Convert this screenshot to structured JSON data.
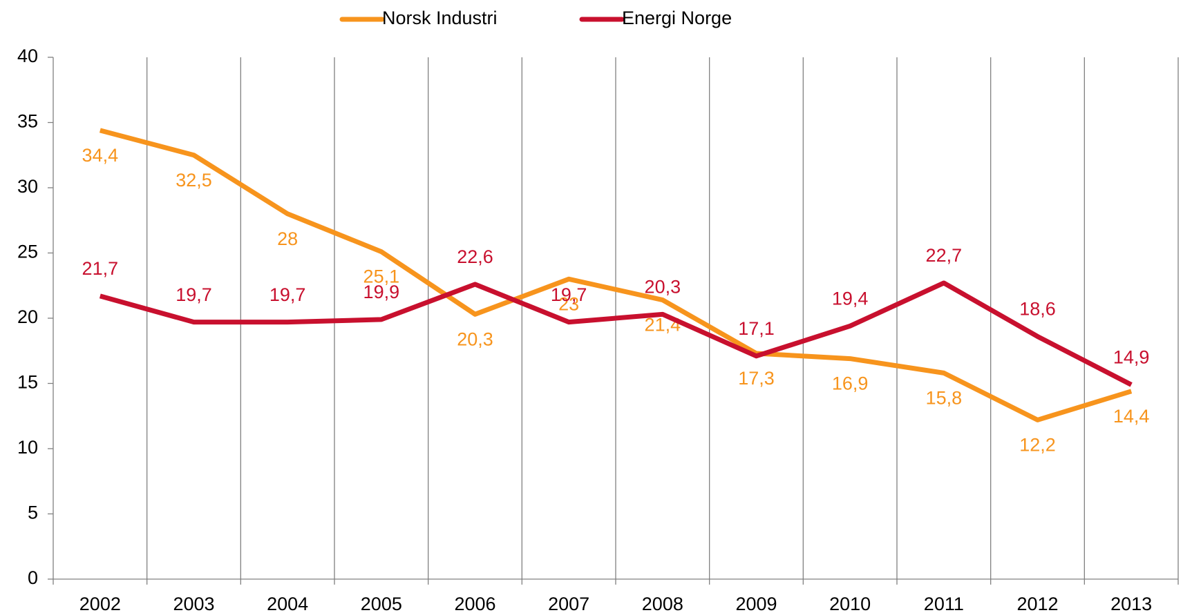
{
  "chart_data": {
    "type": "line",
    "categories": [
      "2002",
      "2003",
      "2004",
      "2005",
      "2006",
      "2007",
      "2008",
      "2009",
      "2010",
      "2011",
      "2012",
      "2013"
    ],
    "series": [
      {
        "name": "Norsk Industri",
        "color": "#f7941d",
        "values": [
          34.4,
          32.5,
          28,
          25.1,
          20.3,
          23,
          21.4,
          17.3,
          16.9,
          15.8,
          12.2,
          14.4
        ],
        "value_labels": [
          "34,4",
          "32,5",
          "28",
          "25,1",
          "20,3",
          "23",
          "21,4",
          "17,3",
          "16,9",
          "15,8",
          "12,2",
          "14,4"
        ]
      },
      {
        "name": "Energi Norge",
        "color": "#c8102e",
        "values": [
          21.7,
          19.7,
          19.7,
          19.9,
          22.6,
          19.7,
          20.3,
          17.1,
          19.4,
          22.7,
          18.6,
          14.9
        ],
        "value_labels": [
          "21,7",
          "19,7",
          "19,7",
          "19,9",
          "22,6",
          "19,7",
          "20,3",
          "17,1",
          "19,4",
          "22,7",
          "18,6",
          "14,9"
        ]
      }
    ],
    "ylim": [
      0,
      40
    ],
    "yticks": [
      0,
      5,
      10,
      15,
      20,
      25,
      30,
      35,
      40
    ],
    "legend": "top"
  }
}
